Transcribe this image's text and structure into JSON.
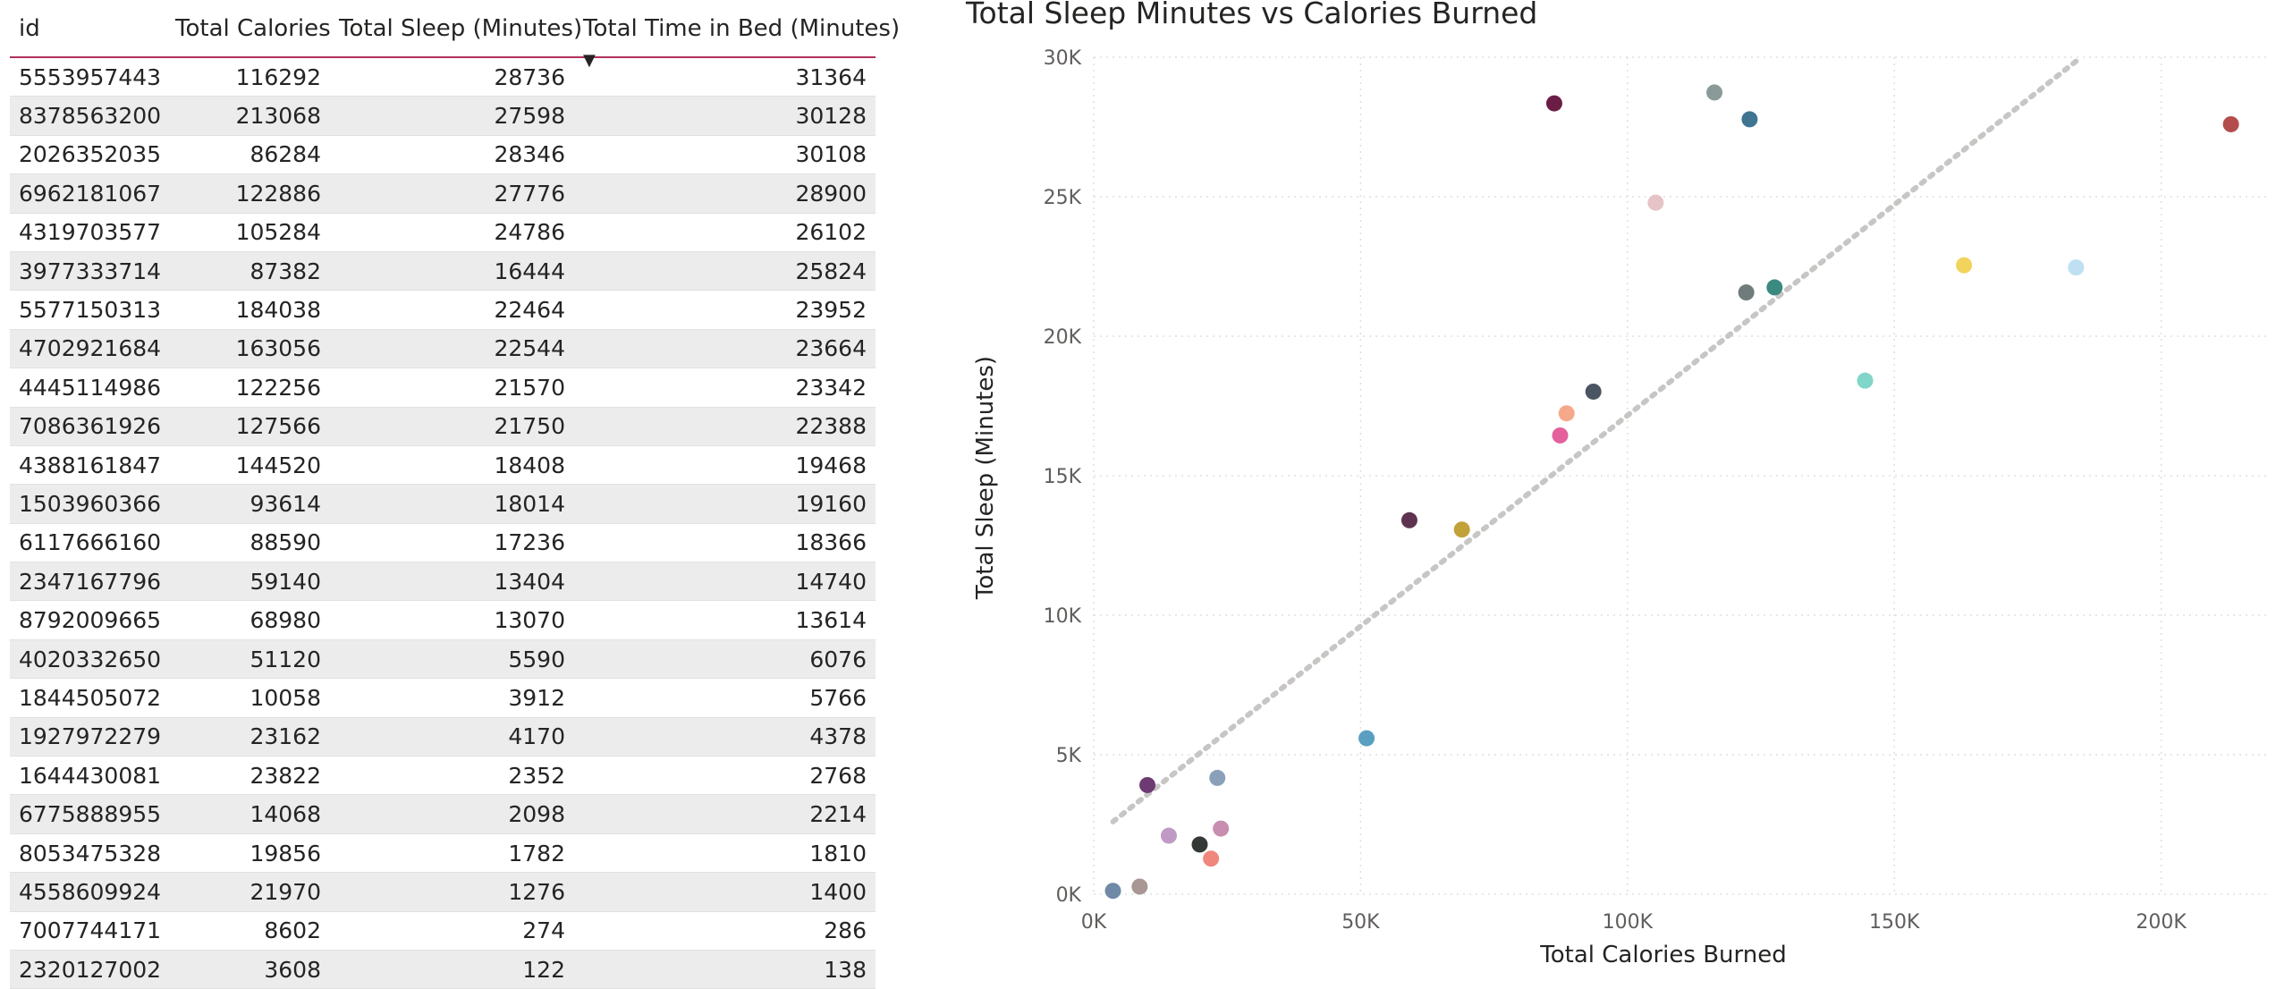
{
  "table": {
    "columns": [
      "id",
      "Total Calories",
      "Total Sleep (Minutes)",
      "Total Time in Bed (Minutes)"
    ],
    "rows": [
      [
        "5553957443",
        "116292",
        "28736",
        "31364"
      ],
      [
        "8378563200",
        "213068",
        "27598",
        "30128"
      ],
      [
        "2026352035",
        "86284",
        "28346",
        "30108"
      ],
      [
        "6962181067",
        "122886",
        "27776",
        "28900"
      ],
      [
        "4319703577",
        "105284",
        "24786",
        "26102"
      ],
      [
        "3977333714",
        "87382",
        "16444",
        "25824"
      ],
      [
        "5577150313",
        "184038",
        "22464",
        "23952"
      ],
      [
        "4702921684",
        "163056",
        "22544",
        "23664"
      ],
      [
        "4445114986",
        "122256",
        "21570",
        "23342"
      ],
      [
        "7086361926",
        "127566",
        "21750",
        "22388"
      ],
      [
        "4388161847",
        "144520",
        "18408",
        "19468"
      ],
      [
        "1503960366",
        "93614",
        "18014",
        "19160"
      ],
      [
        "6117666160",
        "88590",
        "17236",
        "18366"
      ],
      [
        "2347167796",
        "59140",
        "13404",
        "14740"
      ],
      [
        "8792009665",
        "68980",
        "13070",
        "13614"
      ],
      [
        "4020332650",
        "51120",
        "5590",
        "6076"
      ],
      [
        "1844505072",
        "10058",
        "3912",
        "5766"
      ],
      [
        "1927972279",
        "23162",
        "4170",
        "4378"
      ],
      [
        "1644430081",
        "23822",
        "2352",
        "2768"
      ],
      [
        "6775888955",
        "14068",
        "2098",
        "2214"
      ],
      [
        "8053475328",
        "19856",
        "1782",
        "1810"
      ],
      [
        "4558609924",
        "21970",
        "1276",
        "1400"
      ],
      [
        "7007744171",
        "8602",
        "274",
        "286"
      ],
      [
        "2320127002",
        "3608",
        "122",
        "138"
      ]
    ]
  },
  "chart_data": {
    "type": "scatter",
    "title": "Total Sleep Minutes vs Calories Burned",
    "xlabel": "Total Calories Burned",
    "ylabel": "Total Sleep (Minutes)",
    "xlim": [
      0,
      220000
    ],
    "ylim": [
      0,
      30000
    ],
    "x_ticks": [
      "0K",
      "50K",
      "100K",
      "150K",
      "200K"
    ],
    "y_ticks": [
      "0K",
      "5K",
      "10K",
      "15K",
      "20K",
      "25K",
      "30K"
    ],
    "grid": true,
    "trend_line": {
      "style": "dotted",
      "color": "#c8c6c4",
      "from": [
        3608,
        2600
      ],
      "to": [
        185000,
        30000
      ]
    },
    "points": [
      {
        "x": 116292,
        "y": 28736,
        "color": "#8a9a98"
      },
      {
        "x": 213068,
        "y": 27598,
        "color": "#b34c4c"
      },
      {
        "x": 86284,
        "y": 28346,
        "color": "#6b1e45"
      },
      {
        "x": 122886,
        "y": 27776,
        "color": "#3f7590"
      },
      {
        "x": 105284,
        "y": 24786,
        "color": "#e6c3c6"
      },
      {
        "x": 87382,
        "y": 16444,
        "color": "#e4609c"
      },
      {
        "x": 184038,
        "y": 22464,
        "color": "#bfe0f2"
      },
      {
        "x": 163056,
        "y": 22544,
        "color": "#f2d35c"
      },
      {
        "x": 122256,
        "y": 21570,
        "color": "#6f7c7b"
      },
      {
        "x": 127566,
        "y": 21750,
        "color": "#3b8a80"
      },
      {
        "x": 144520,
        "y": 18408,
        "color": "#7fd6c9"
      },
      {
        "x": 93614,
        "y": 18014,
        "color": "#4a5563"
      },
      {
        "x": 88590,
        "y": 17236,
        "color": "#f5a98a"
      },
      {
        "x": 59140,
        "y": 13404,
        "color": "#5e3350"
      },
      {
        "x": 68980,
        "y": 13070,
        "color": "#c2a13a"
      },
      {
        "x": 51120,
        "y": 5590,
        "color": "#5a9fc2"
      },
      {
        "x": 10058,
        "y": 3912,
        "color": "#6e3a73"
      },
      {
        "x": 23162,
        "y": 4170,
        "color": "#8aa0b8"
      },
      {
        "x": 23822,
        "y": 2352,
        "color": "#c98db0"
      },
      {
        "x": 14068,
        "y": 2098,
        "color": "#c09ac4"
      },
      {
        "x": 19856,
        "y": 1782,
        "color": "#333a35"
      },
      {
        "x": 21970,
        "y": 1276,
        "color": "#f0867c"
      },
      {
        "x": 8602,
        "y": 274,
        "color": "#a89794"
      },
      {
        "x": 3608,
        "y": 122,
        "color": "#6f8aa6"
      }
    ]
  }
}
